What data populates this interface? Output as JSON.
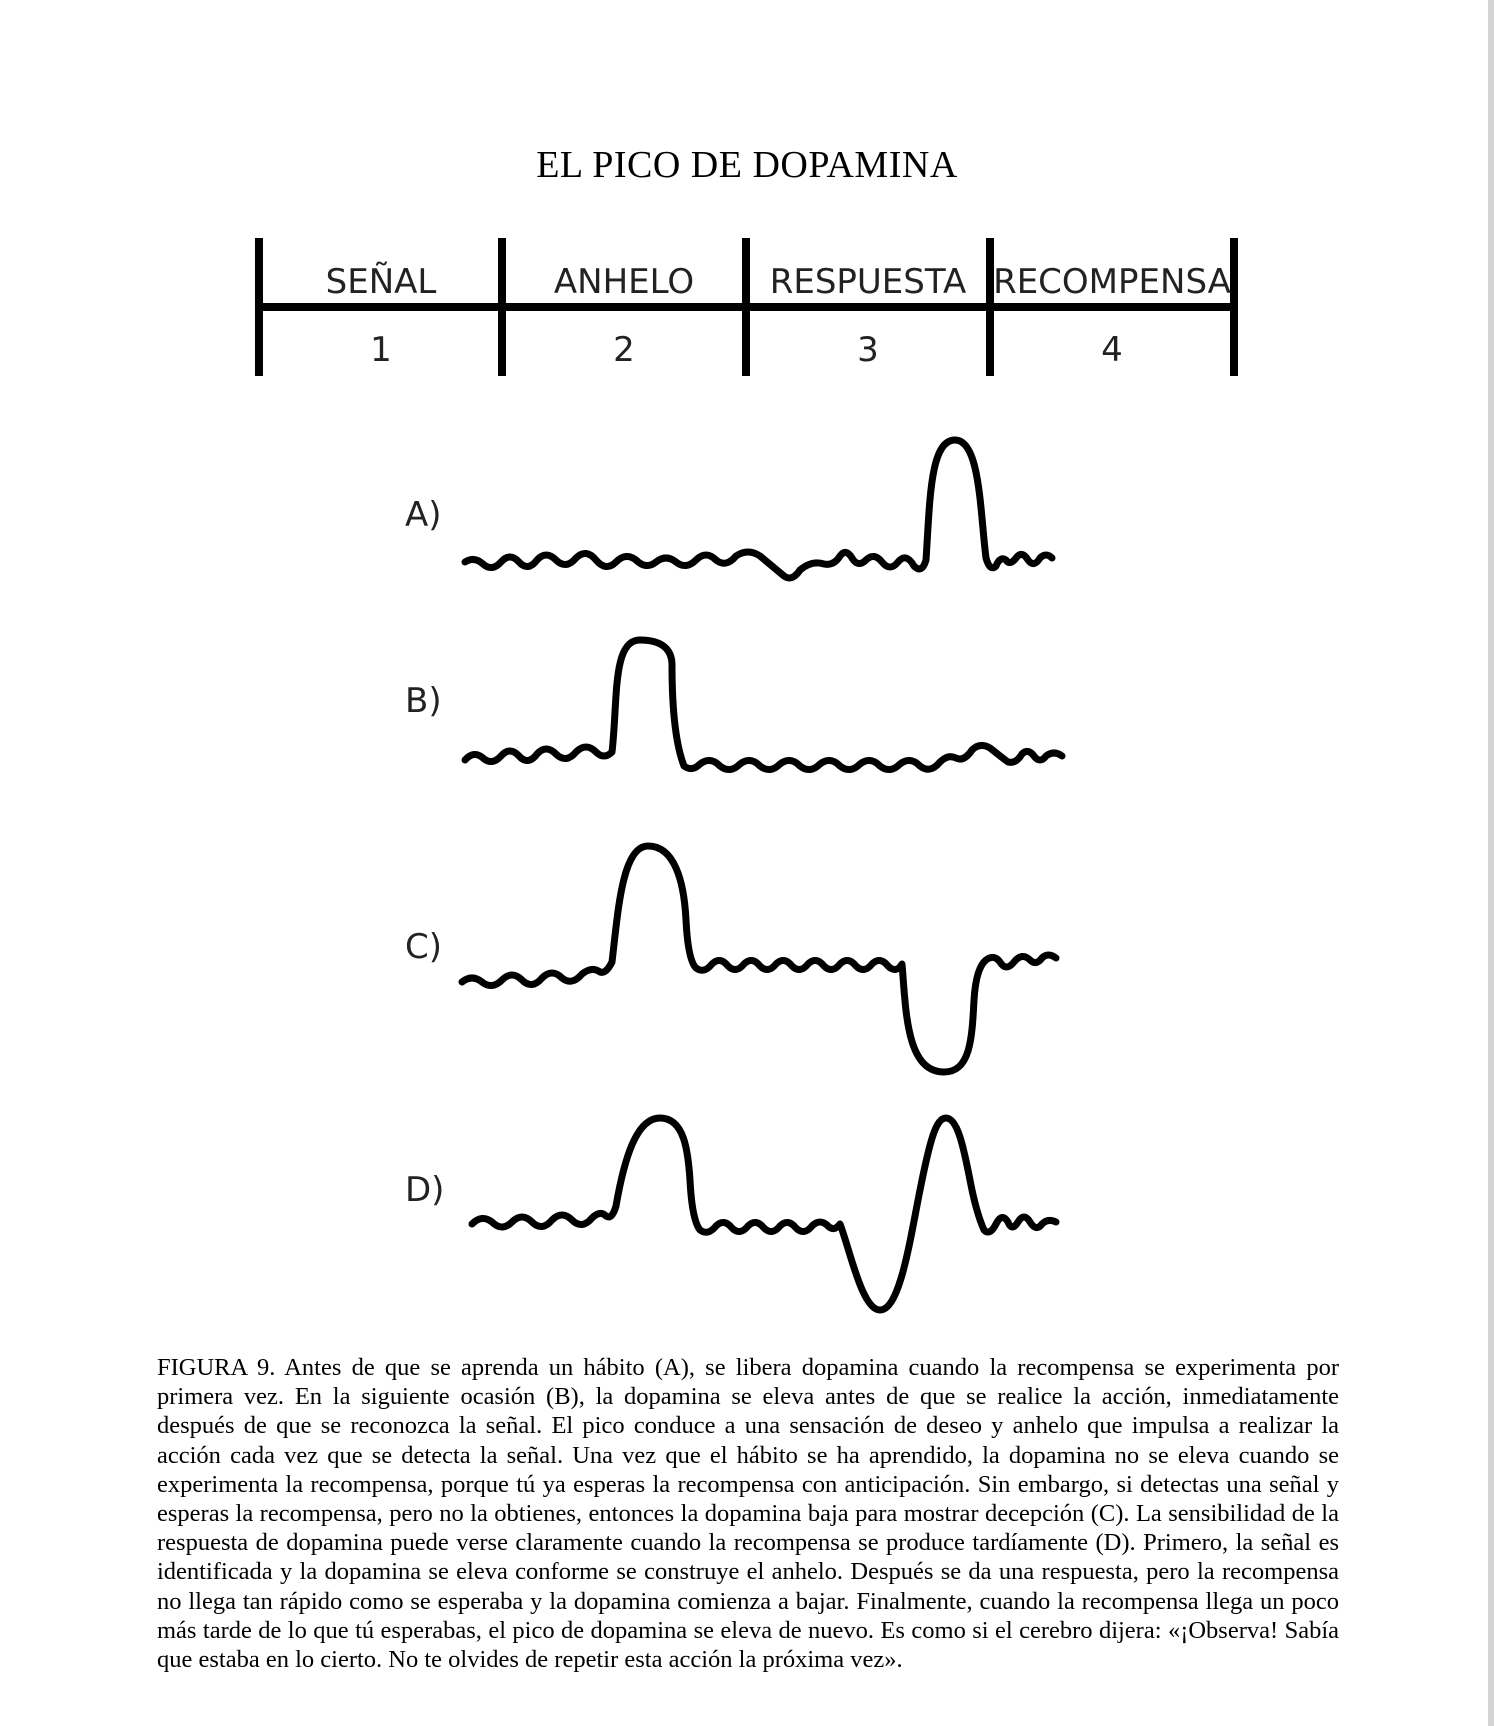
{
  "title": "EL PICO DE DOPAMINA",
  "stages": [
    {
      "name": "SEÑAL",
      "number": "1"
    },
    {
      "name": "ANHELO",
      "number": "2"
    },
    {
      "name": "RESPUESTA",
      "number": "3"
    },
    {
      "name": "RECOMPENSA",
      "number": "4"
    }
  ],
  "traces": [
    {
      "label": "A)"
    },
    {
      "label": "B)"
    },
    {
      "label": "C)"
    },
    {
      "label": "D)"
    }
  ],
  "caption": "FIGURA 9. Antes de que se aprenda un hábito (A), se libera dopamina cuando la recompensa se experimenta por primera vez. En la siguiente ocasión (B), la dopamina se eleva antes de que se realice la acción, inmediatamente después de que se reconozca la señal. El pico conduce a una sensación de deseo y anhelo que impulsa a realizar la acción cada vez que se detecta la señal. Una vez que el hábito se ha aprendido, la dopamina no se eleva cuando se experimenta la recompensa, porque tú ya esperas la recompensa con anticipación. Sin embargo, si detectas una señal y esperas la recompensa, pero no la obtienes, entonces la dopamina baja para mostrar decepción (C). La sensibilidad de la respuesta de dopamina puede verse claramente cuando la recompensa se produce tardíamente (D). Primero, la señal es identificada y la dopamina se eleva conforme se construye el anhelo. Después se da una respuesta, pero la recompensa no llega tan rápido como se esperaba y la dopamina comienza a bajar. Finalmente, cuando la recompensa llega un poco más tarde de lo que tú esperabas, el pico de dopamina se eleva de nuevo. Es como si el cerebro dijera: «¡Observa! Sabía que estaba en lo cierto. No te olvides de repetir esta acción la próxima vez»."
}
